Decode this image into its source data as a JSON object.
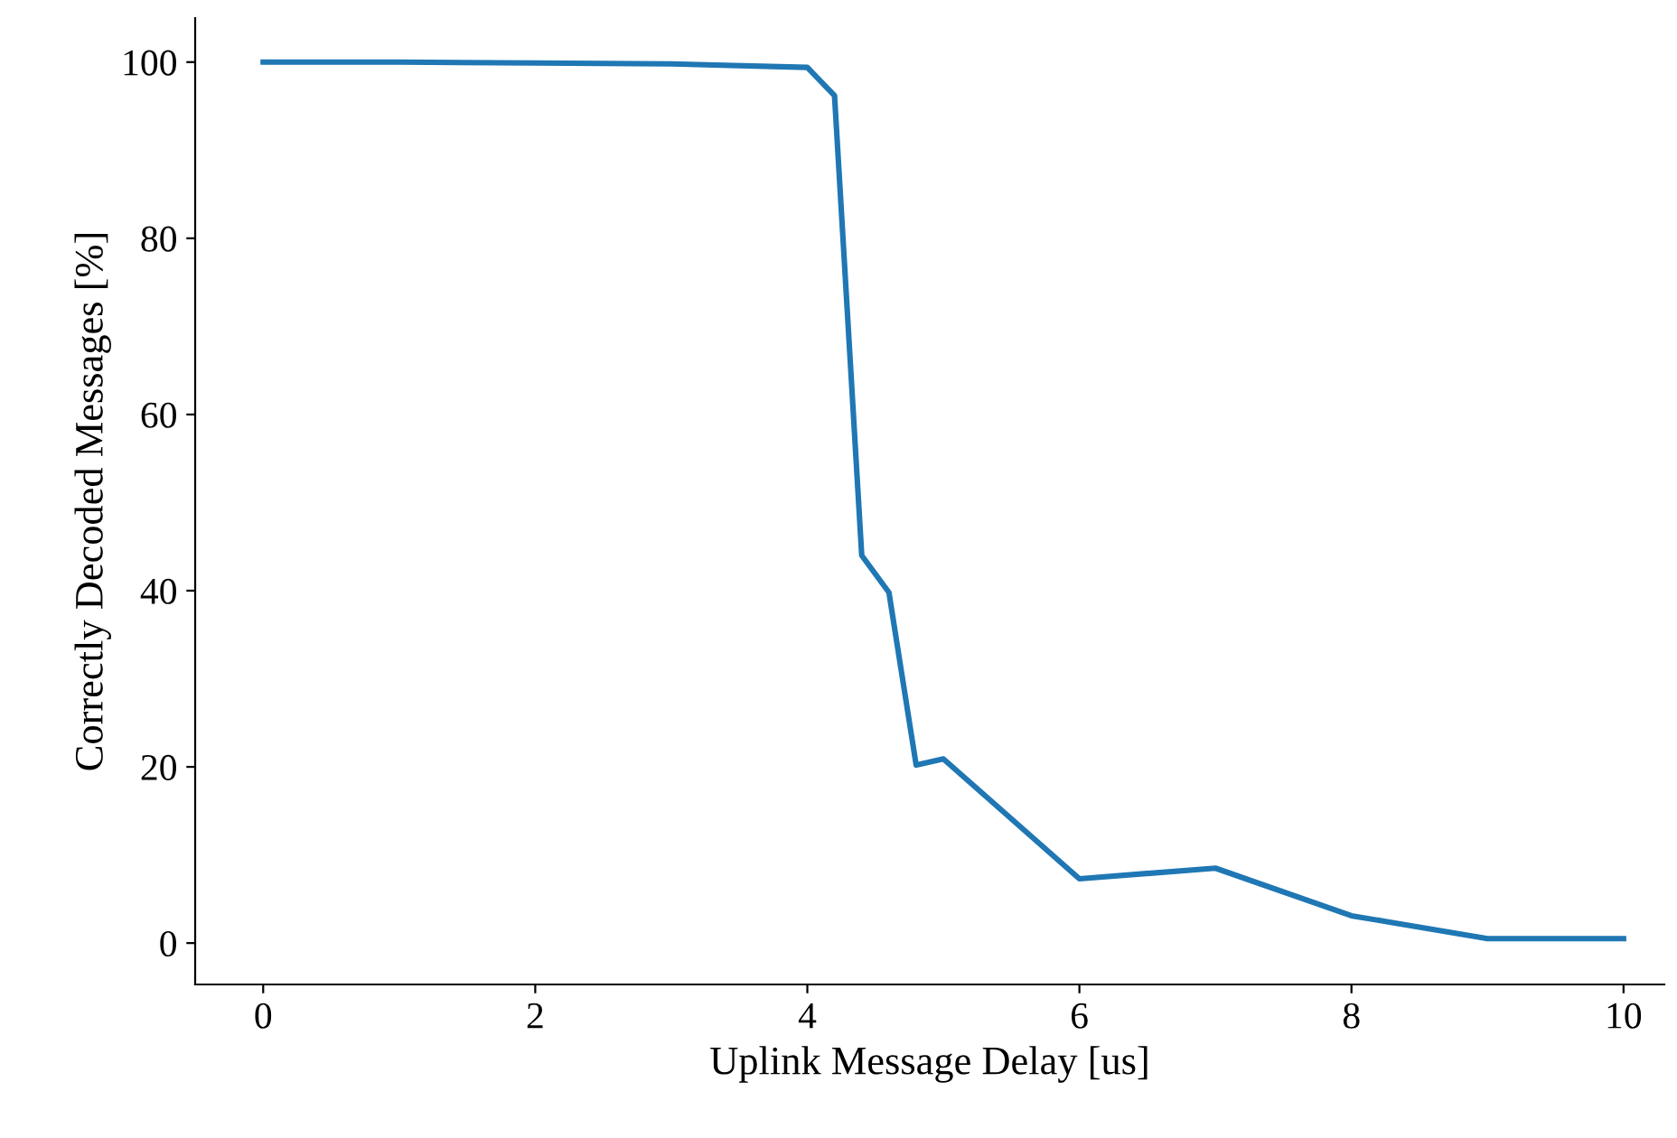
{
  "chart_data": {
    "type": "line",
    "xlabel": "Uplink Message Delay [us]",
    "ylabel": "Correctly Decoded Messages [%]",
    "x": [
      0,
      1,
      2,
      3,
      4,
      4.2,
      4.4,
      4.6,
      4.8,
      5,
      6,
      7,
      8,
      9,
      10
    ],
    "series": [
      {
        "color": "#1f77b4",
        "values": [
          100,
          100,
          99.9,
          99.8,
          99.4,
          96.2,
          44,
          39.8,
          20.2,
          20.9,
          7.3,
          8.5,
          3.1,
          0.5,
          0.5
        ]
      }
    ],
    "xlim": [
      -0.5,
      10.3
    ],
    "xticks": [
      0,
      2,
      4,
      6,
      8,
      10
    ],
    "ylim": [
      -4.7,
      105
    ],
    "yticks": [
      0,
      20,
      40,
      60,
      80,
      100
    ],
    "grid": false,
    "legend": false,
    "marker": "none",
    "line_style": "solid"
  }
}
